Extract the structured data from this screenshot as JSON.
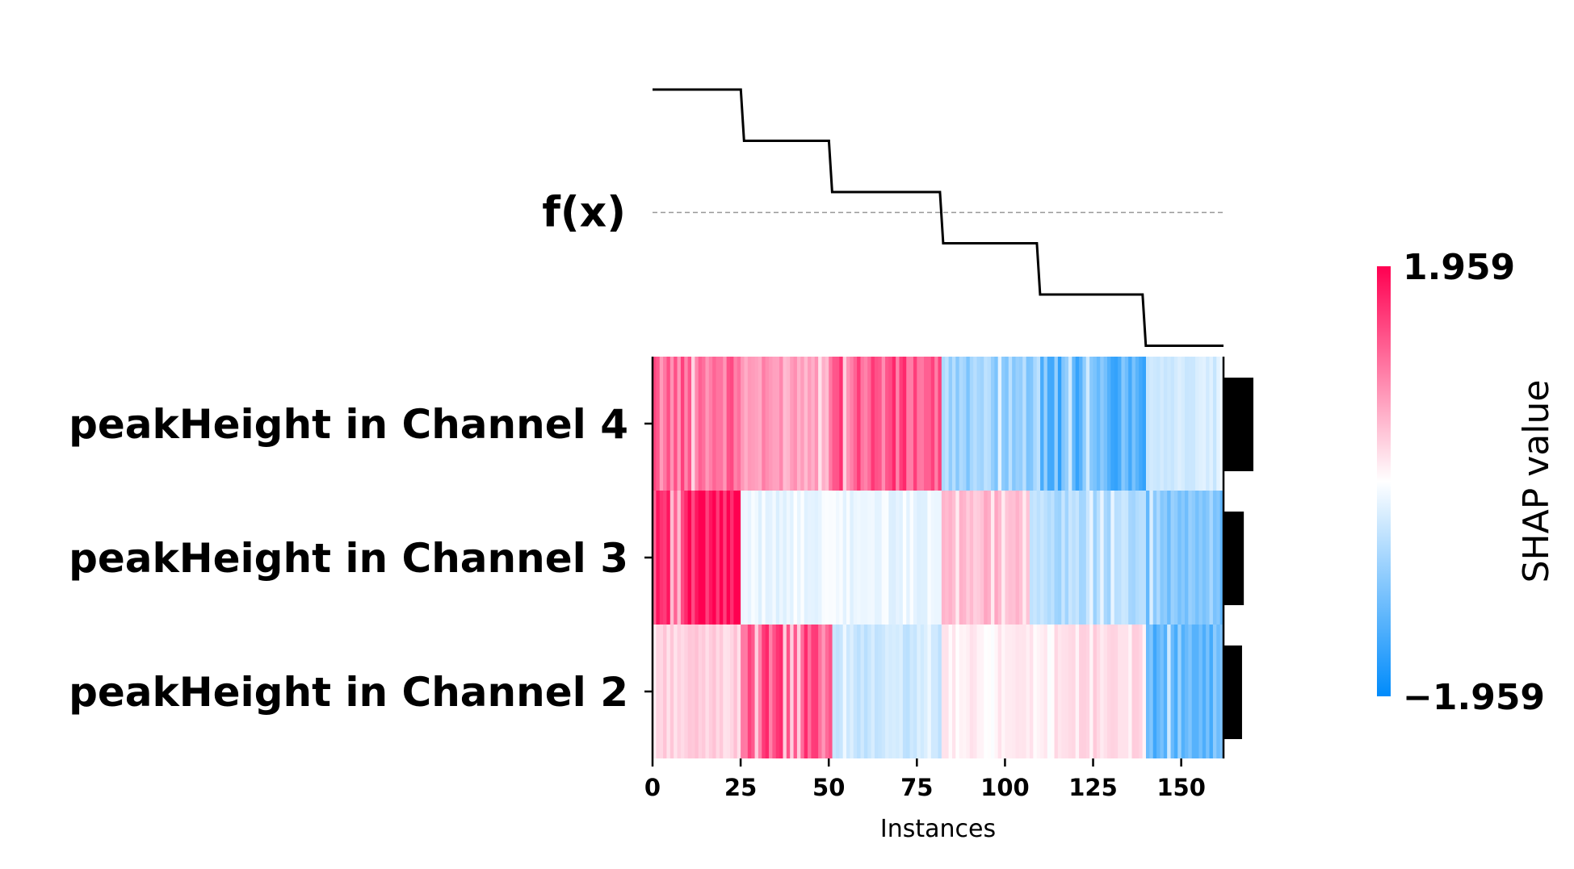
{
  "chart_data": {
    "type": "heatmap",
    "xlabel": "Instances",
    "output_label": "f(x)",
    "x_ticks": [
      "0",
      "25",
      "50",
      "75",
      "100",
      "125",
      "150"
    ],
    "x_tick_values": [
      0,
      25,
      50,
      75,
      100,
      125,
      150
    ],
    "n_instances": 162,
    "features": [
      "peakHeight in Channel 4",
      "peakHeight in Channel 3",
      "peakHeight in Channel 2"
    ],
    "feature_importance": [
      0.82,
      0.55,
      0.5
    ],
    "shap_segments": [
      [
        {
          "start": 0,
          "end": 25,
          "value": 1.1
        },
        {
          "start": 25,
          "end": 50,
          "value": 0.75
        },
        {
          "start": 50,
          "end": 82,
          "value": 1.25
        },
        {
          "start": 82,
          "end": 110,
          "value": -0.75
        },
        {
          "start": 110,
          "end": 140,
          "value": -1.2
        },
        {
          "start": 140,
          "end": 162,
          "value": -0.35
        }
      ],
      [
        {
          "start": 0,
          "end": 25,
          "value": 1.75
        },
        {
          "start": 25,
          "end": 82,
          "value": -0.15
        },
        {
          "start": 82,
          "end": 107,
          "value": 0.55
        },
        {
          "start": 107,
          "end": 140,
          "value": -0.6
        },
        {
          "start": 140,
          "end": 162,
          "value": -0.95
        }
      ],
      [
        {
          "start": 0,
          "end": 25,
          "value": 0.35
        },
        {
          "start": 25,
          "end": 51,
          "value": 1.25
        },
        {
          "start": 51,
          "end": 82,
          "value": -0.4
        },
        {
          "start": 82,
          "end": 114,
          "value": 0.1
        },
        {
          "start": 114,
          "end": 140,
          "value": 0.3
        },
        {
          "start": 140,
          "end": 162,
          "value": -1.2
        }
      ]
    ],
    "fx_steps": [
      {
        "start": 0,
        "end": 25.5,
        "level": 5
      },
      {
        "start": 25.5,
        "end": 50.5,
        "level": 4
      },
      {
        "start": 50.5,
        "end": 82,
        "level": 3
      },
      {
        "start": 82,
        "end": 109.5,
        "level": 2
      },
      {
        "start": 109.5,
        "end": 139.5,
        "level": 1
      },
      {
        "start": 139.5,
        "end": 162,
        "level": 0
      }
    ],
    "fx_baseline_level": 2.6,
    "colorbar": {
      "min_label": "−1.959",
      "max_label": "1.959",
      "min": -1.959,
      "max": 1.959,
      "title": "SHAP value"
    },
    "colors": {
      "positive": "#ff0051",
      "negative": "#008bfb",
      "neutral": "#ffffff"
    },
    "grid": false
  }
}
